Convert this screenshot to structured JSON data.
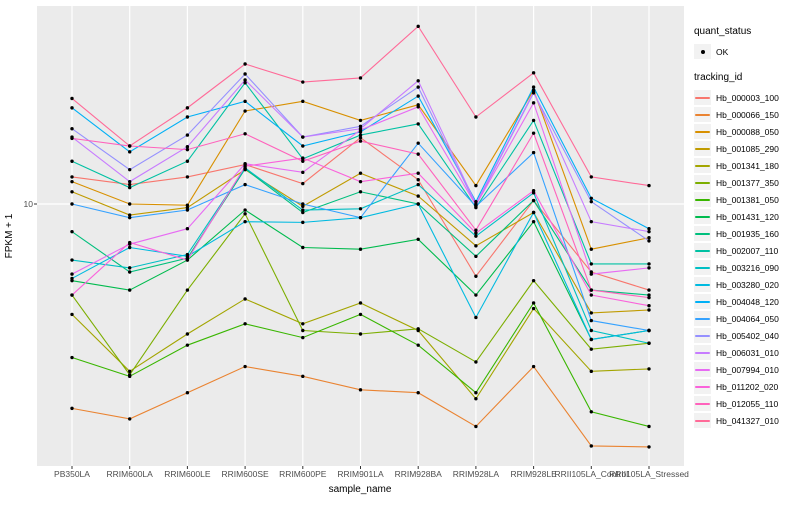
{
  "legend": {
    "quant_status_title": "quant_status",
    "quant_status_items": [
      {
        "label": "OK",
        "marker": "black-point"
      }
    ],
    "tracking_title": "tracking_id"
  },
  "chart_data": {
    "type": "line",
    "title": "",
    "xlabel": "sample_name",
    "ylabel": "FPKM + 1",
    "y_scale": "log10",
    "y_tick_labels": [
      "10"
    ],
    "y_tick_values": [
      10
    ],
    "ylim": [
      1.05,
      55
    ],
    "grid": "major",
    "legend_position": "right",
    "panel_color": "#EBEBEB",
    "gridline_color": "#FFFFFF",
    "marker_color": "#000000",
    "tick_label_color": "#4D4D4D",
    "categories": [
      "PB350LA",
      "RRIM600LA",
      "RRIM600LE",
      "RRIM600SE",
      "RRIM600PE",
      "RRIM901LA",
      "RRIM928BA",
      "RRIM928LA",
      "RRIM928LE",
      "RRII105LA_Control",
      "RRII105LA_Stressed"
    ],
    "series": [
      {
        "name": "Hb_000003_100",
        "color": "#F8766D",
        "values": [
          12.6,
          11.8,
          12.6,
          14.0,
          11.9,
          17.6,
          12.3,
          5.4,
          10.3,
          5.6,
          4.8
        ]
      },
      {
        "name": "Hb_000066_150",
        "color": "#EA8331",
        "values": [
          1.75,
          1.6,
          2.0,
          2.5,
          2.3,
          2.05,
          2.0,
          1.5,
          2.5,
          1.27,
          1.26
        ]
      },
      {
        "name": "Hb_000088_050",
        "color": "#D89000",
        "values": [
          12.1,
          10.0,
          9.9,
          22.1,
          24.0,
          20.4,
          23.3,
          11.7,
          26.4,
          6.8,
          7.5
        ]
      },
      {
        "name": "Hb_001085_290",
        "color": "#C09B00",
        "values": [
          11.1,
          9.1,
          9.7,
          13.4,
          9.8,
          13.0,
          10.7,
          7.0,
          9.3,
          3.95,
          4.05
        ]
      },
      {
        "name": "Hb_001341_180",
        "color": "#A3A500",
        "values": [
          3.9,
          2.4,
          3.3,
          4.45,
          3.6,
          4.3,
          3.4,
          1.9,
          4.1,
          2.4,
          2.45
        ]
      },
      {
        "name": "Hb_001377_350",
        "color": "#7CAE00",
        "values": [
          4.6,
          2.33,
          4.8,
          9.2,
          3.4,
          3.3,
          3.45,
          2.6,
          5.2,
          2.9,
          3.05
        ]
      },
      {
        "name": "Hb_001381_050",
        "color": "#39B600",
        "values": [
          2.7,
          2.3,
          3.0,
          3.6,
          3.2,
          3.9,
          3.0,
          2.0,
          4.3,
          1.7,
          1.5
        ]
      },
      {
        "name": "Hb_001431_120",
        "color": "#00BB4E",
        "values": [
          5.2,
          4.8,
          6.2,
          9.5,
          6.9,
          6.8,
          7.4,
          4.6,
          8.6,
          3.15,
          3.4
        ]
      },
      {
        "name": "Hb_001935_160",
        "color": "#00BF7D",
        "values": [
          7.9,
          5.6,
          6.3,
          13.5,
          9.3,
          11.1,
          10.0,
          6.4,
          10.3,
          4.8,
          4.6
        ]
      },
      {
        "name": "Hb_002007_110",
        "color": "#00C1A3",
        "values": [
          14.4,
          11.5,
          14.4,
          28.1,
          14.7,
          18.0,
          19.8,
          9.7,
          20.4,
          6.0,
          6.0
        ]
      },
      {
        "name": "Hb_003216_090",
        "color": "#00BFC4",
        "values": [
          6.2,
          5.8,
          6.5,
          13.6,
          9.5,
          9.6,
          11.8,
          7.6,
          11.0,
          3.4,
          3.05
        ]
      },
      {
        "name": "Hb_003280_020",
        "color": "#00BAE0",
        "values": [
          5.3,
          6.9,
          6.4,
          8.6,
          8.55,
          8.9,
          10.0,
          3.8,
          9.3,
          3.15,
          3.4
        ]
      },
      {
        "name": "Hb_004048_120",
        "color": "#00B0F6",
        "values": [
          22.7,
          15.6,
          21.0,
          24.0,
          16.4,
          18.5,
          25.1,
          10.2,
          27.1,
          10.5,
          8.1
        ]
      },
      {
        "name": "Hb_004064_050",
        "color": "#35A2FF",
        "values": [
          10.0,
          8.9,
          9.5,
          11.8,
          10.0,
          8.9,
          16.8,
          9.8,
          15.5,
          3.7,
          3.4
        ]
      },
      {
        "name": "Hb_005402_040",
        "color": "#9590FF",
        "values": [
          19.0,
          13.4,
          18.0,
          30.3,
          17.7,
          19.4,
          27.1,
          9.9,
          25.8,
          10.2,
          7.3
        ]
      },
      {
        "name": "Hb_006031_010",
        "color": "#C77CFF",
        "values": [
          17.7,
          12.1,
          16.3,
          28.8,
          17.7,
          19.0,
          28.6,
          10.0,
          26.0,
          8.6,
          7.9
        ]
      },
      {
        "name": "Hb_007994_010",
        "color": "#E76BF3",
        "values": [
          5.5,
          7.1,
          8.1,
          14.1,
          13.1,
          18.8,
          22.9,
          9.9,
          23.7,
          5.5,
          5.8
        ]
      },
      {
        "name": "Hb_011202_020",
        "color": "#FA62DB",
        "values": [
          4.6,
          7.2,
          6.2,
          13.8,
          14.8,
          12.1,
          13.0,
          7.8,
          11.2,
          4.6,
          4.2
        ]
      },
      {
        "name": "Hb_012055_110",
        "color": "#FF62BC",
        "values": [
          17.5,
          16.4,
          15.9,
          18.2,
          14.4,
          17.1,
          15.3,
          8.0,
          18.3,
          4.8,
          4.5
        ]
      },
      {
        "name": "Hb_041327_010",
        "color": "#FF6A98",
        "values": [
          24.6,
          16.4,
          22.7,
          33.0,
          28.3,
          29.3,
          45.5,
          21.0,
          30.6,
          12.6,
          11.7
        ]
      }
    ]
  }
}
